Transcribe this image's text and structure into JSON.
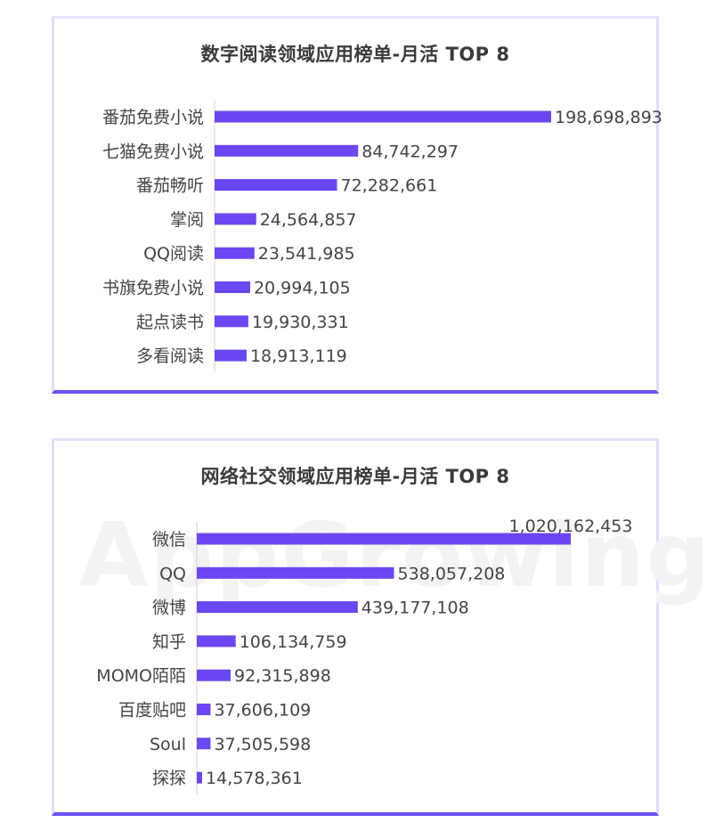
{
  "colors": {
    "bar": "#6a47f2",
    "frame_accent": "#6d4ff2"
  },
  "watermark": "AppGrowing",
  "chart_data": [
    {
      "type": "bar",
      "orientation": "horizontal",
      "title": "数字阅读领域应用榜单-月活 TOP 8",
      "categories": [
        "番茄免费小说",
        "七猫免费小说",
        "番茄畅听",
        "掌阅",
        "QQ阅读",
        "书旗免费小说",
        "起点读书",
        "多看阅读"
      ],
      "values": [
        198698893,
        84742297,
        72282661,
        24564857,
        23541985,
        20994105,
        19930331,
        18913119
      ],
      "value_labels": [
        "198,698,893",
        "84,742,297",
        "72,282,661",
        "24,564,857",
        "23,541,985",
        "20,994,105",
        "19,930,331",
        "18,913,119"
      ],
      "xlim": [
        0,
        198698893
      ],
      "grid": false
    },
    {
      "type": "bar",
      "orientation": "horizontal",
      "title": "网络社交领域应用榜单-月活 TOP 8",
      "categories": [
        "微信",
        "QQ",
        "微博",
        "知乎",
        "MOMO陌陌",
        "百度贴吧",
        "Soul",
        "探探"
      ],
      "values": [
        1020162453,
        538057208,
        439177108,
        106134759,
        92315898,
        37606109,
        37505598,
        14578361
      ],
      "value_labels": [
        "1,020,162,453",
        "538,057,208",
        "439,177,108",
        "106,134,759",
        "92,315,898",
        "37,606,109",
        "37,505,598",
        "14,578,361"
      ],
      "xlim": [
        0,
        1020162453
      ],
      "grid": false
    }
  ]
}
